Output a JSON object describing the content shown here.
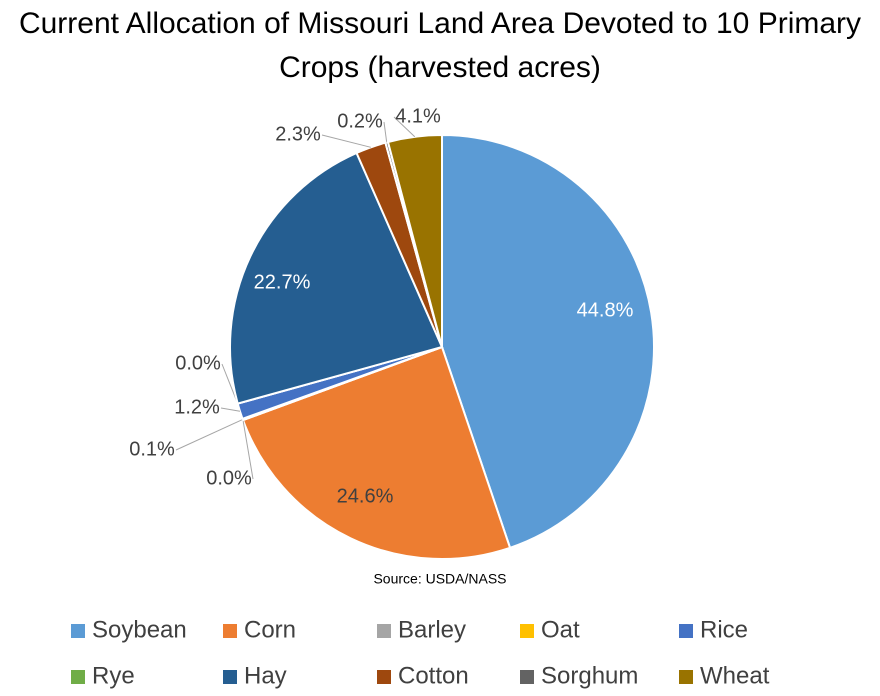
{
  "chart_data": {
    "type": "pie",
    "title": "Current Allocation of Missouri Land Area Devoted to 10 Primary Crops (harvested acres)",
    "source": "Source: USDA/NASS",
    "categories": [
      "Soybean",
      "Corn",
      "Barley",
      "Oat",
      "Rice",
      "Rye",
      "Hay",
      "Cotton",
      "Sorghum",
      "Wheat"
    ],
    "values": [
      44.8,
      24.6,
      0.0,
      0.1,
      1.2,
      0.0,
      22.7,
      2.3,
      0.2,
      4.1
    ],
    "value_labels": [
      "44.8%",
      "24.6%",
      "0.0%",
      "0.1%",
      "1.2%",
      "0.0%",
      "22.7%",
      "2.3%",
      "0.2%",
      "4.1%"
    ],
    "colors": [
      "#5b9bd5",
      "#ed7d31",
      "#a5a5a5",
      "#ffc000",
      "#4472c4",
      "#70ad47",
      "#255e91",
      "#9e480e",
      "#636363",
      "#997300"
    ],
    "legend": "bottom"
  }
}
